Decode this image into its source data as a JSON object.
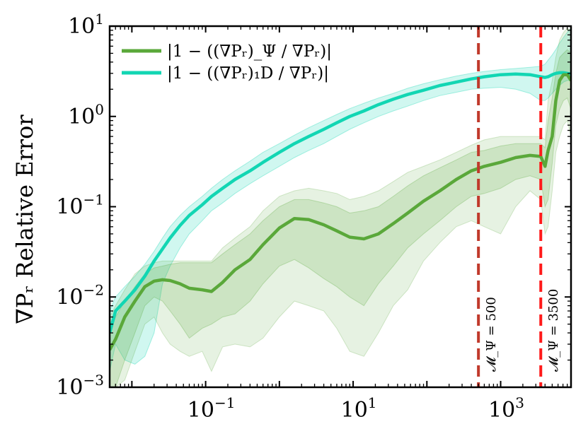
{
  "chart_data": {
    "type": "line",
    "title": "",
    "xlabel": "",
    "ylabel": "∇Pᵣ Relative Error",
    "xscale": "log",
    "yscale": "log",
    "xlim": [
      0.005,
      9000
    ],
    "ylim": [
      0.001,
      10
    ],
    "x_ticks": [
      {
        "value": 0.1,
        "base": "10",
        "exp": "−1"
      },
      {
        "value": 10,
        "base": "10",
        "exp": "1"
      },
      {
        "value": 1000,
        "base": "10",
        "exp": "3"
      }
    ],
    "y_ticks": [
      {
        "value": 0.001,
        "base": "10",
        "exp": "−3"
      },
      {
        "value": 0.01,
        "base": "10",
        "exp": "−2"
      },
      {
        "value": 0.1,
        "base": "10",
        "exp": "−1"
      },
      {
        "value": 1,
        "base": "10",
        "exp": "0"
      },
      {
        "value": 10,
        "base": "10",
        "exp": "1"
      }
    ],
    "legend_position": "top-left",
    "series": [
      {
        "name": "|1 − ((∇Pᵣ)_Ψ / ∇Pᵣ)|",
        "color": "#5aa83a",
        "x": [
          0.005,
          0.006,
          0.008,
          0.011,
          0.015,
          0.02,
          0.026,
          0.033,
          0.045,
          0.06,
          0.09,
          0.12,
          0.17,
          0.25,
          0.4,
          0.6,
          1.0,
          1.6,
          2.5,
          4.0,
          6.0,
          9.0,
          14,
          22,
          35,
          55,
          90,
          150,
          250,
          400,
          600,
          1000,
          1600,
          2500,
          3500,
          4000,
          4400,
          5000,
          5600,
          6300,
          7100,
          8000,
          9000
        ],
        "values": [
          0.0026,
          0.0034,
          0.006,
          0.009,
          0.013,
          0.015,
          0.0155,
          0.0152,
          0.014,
          0.0125,
          0.012,
          0.0115,
          0.0145,
          0.02,
          0.026,
          0.038,
          0.058,
          0.074,
          0.072,
          0.063,
          0.054,
          0.046,
          0.044,
          0.05,
          0.065,
          0.085,
          0.115,
          0.15,
          0.2,
          0.25,
          0.28,
          0.31,
          0.35,
          0.37,
          0.36,
          0.28,
          0.42,
          0.6,
          1.5,
          2.5,
          2.9,
          2.9,
          2.5
        ],
        "band_inner": {
          "lower": [
            0.001,
            0.001,
            0.002,
            0.004,
            0.008,
            0.01,
            0.009,
            0.007,
            0.005,
            0.0035,
            0.0045,
            0.005,
            0.006,
            0.0065,
            0.009,
            0.014,
            0.022,
            0.026,
            0.021,
            0.016,
            0.013,
            0.01,
            0.008,
            0.014,
            0.022,
            0.035,
            0.05,
            0.07,
            0.1,
            0.13,
            0.14,
            0.16,
            0.2,
            0.22,
            0.2,
            0.1,
            0.12,
            0.3,
            0.8,
            1.2,
            1.5,
            1.6,
            1.2
          ],
          "upper": [
            0.004,
            0.006,
            0.009,
            0.013,
            0.018,
            0.021,
            0.022,
            0.023,
            0.024,
            0.024,
            0.024,
            0.024,
            0.03,
            0.038,
            0.05,
            0.07,
            0.1,
            0.12,
            0.12,
            0.11,
            0.1,
            0.085,
            0.09,
            0.1,
            0.13,
            0.17,
            0.22,
            0.27,
            0.33,
            0.4,
            0.42,
            0.47,
            0.5,
            0.5,
            0.5,
            0.45,
            0.9,
            1.6,
            3.0,
            4.5,
            5.0,
            5.5,
            5.0
          ]
        },
        "band_outer": {
          "lower": [
            0.0005,
            0.0008,
            0.0012,
            0.0025,
            0.005,
            0.006,
            0.004,
            0.003,
            0.0025,
            0.0022,
            0.0025,
            0.0015,
            0.0028,
            0.003,
            0.0028,
            0.0035,
            0.006,
            0.009,
            0.008,
            0.007,
            0.0045,
            0.0025,
            0.0022,
            0.004,
            0.008,
            0.012,
            0.025,
            0.04,
            0.06,
            0.07,
            0.06,
            0.05,
            0.1,
            0.15,
            0.12,
            0.05,
            0.06,
            0.15,
            0.4,
            0.6,
            0.8,
            0.9,
            0.6
          ],
          "upper": [
            0.006,
            0.008,
            0.012,
            0.018,
            0.022,
            0.024,
            0.025,
            0.025,
            0.025,
            0.025,
            0.025,
            0.025,
            0.035,
            0.045,
            0.06,
            0.09,
            0.13,
            0.15,
            0.16,
            0.15,
            0.14,
            0.12,
            0.13,
            0.15,
            0.19,
            0.24,
            0.28,
            0.33,
            0.4,
            0.48,
            0.55,
            0.6,
            0.6,
            0.6,
            0.6,
            0.55,
            1.5,
            2.5,
            4.5,
            7.0,
            8.5,
            9.5,
            9.0
          ]
        }
      },
      {
        "name": "|1 − ((∇Pᵣ)₁D / ∇Pᵣ)|",
        "color": "#12d6b3",
        "x": [
          0.005,
          0.006,
          0.008,
          0.011,
          0.015,
          0.02,
          0.026,
          0.033,
          0.045,
          0.06,
          0.09,
          0.12,
          0.17,
          0.25,
          0.4,
          0.6,
          1.0,
          1.6,
          2.5,
          4.0,
          6.0,
          9.0,
          14,
          22,
          35,
          55,
          90,
          150,
          250,
          400,
          600,
          1000,
          1600,
          2500,
          3500,
          4000,
          4400,
          5000,
          5600,
          6300,
          7100,
          8000,
          9000
        ],
        "values": [
          0.004,
          0.007,
          0.009,
          0.012,
          0.017,
          0.025,
          0.034,
          0.045,
          0.062,
          0.08,
          0.105,
          0.13,
          0.16,
          0.2,
          0.25,
          0.31,
          0.4,
          0.5,
          0.6,
          0.72,
          0.85,
          1.0,
          1.15,
          1.35,
          1.55,
          1.75,
          1.95,
          2.2,
          2.4,
          2.6,
          2.75,
          2.9,
          2.95,
          2.9,
          2.75,
          2.7,
          2.75,
          2.9,
          3.0,
          3.05,
          3.05,
          3.0,
          2.95
        ],
        "band": {
          "lower": [
            0.0015,
            0.003,
            0.002,
            0.0018,
            0.0022,
            0.004,
            0.014,
            0.022,
            0.035,
            0.05,
            0.07,
            0.09,
            0.11,
            0.14,
            0.18,
            0.22,
            0.28,
            0.35,
            0.42,
            0.5,
            0.6,
            0.72,
            0.85,
            1.0,
            1.15,
            1.3,
            1.5,
            1.7,
            1.85,
            2.0,
            2.05,
            2.1,
            2.0,
            1.8,
            1.5,
            1.5,
            1.6,
            1.8,
            2.0,
            2.2,
            2.4,
            2.5,
            2.5
          ],
          "upper": [
            0.007,
            0.01,
            0.013,
            0.017,
            0.023,
            0.032,
            0.045,
            0.06,
            0.08,
            0.1,
            0.13,
            0.16,
            0.2,
            0.25,
            0.32,
            0.4,
            0.5,
            0.62,
            0.75,
            0.9,
            1.05,
            1.22,
            1.4,
            1.6,
            1.8,
            2.05,
            2.3,
            2.55,
            2.8,
            3.0,
            3.15,
            3.3,
            3.4,
            3.5,
            3.6,
            3.8,
            4.2,
            4.8,
            5.5,
            6.5,
            7.5,
            8.5,
            9.5
          ]
        }
      }
    ],
    "vlines": [
      {
        "x": 500,
        "color": "#c0392b",
        "label": "𝓜_Ψ = 500"
      },
      {
        "x": 3500,
        "color": "#ff1a1a",
        "label": "𝓜_Ψ = 3500"
      }
    ]
  }
}
